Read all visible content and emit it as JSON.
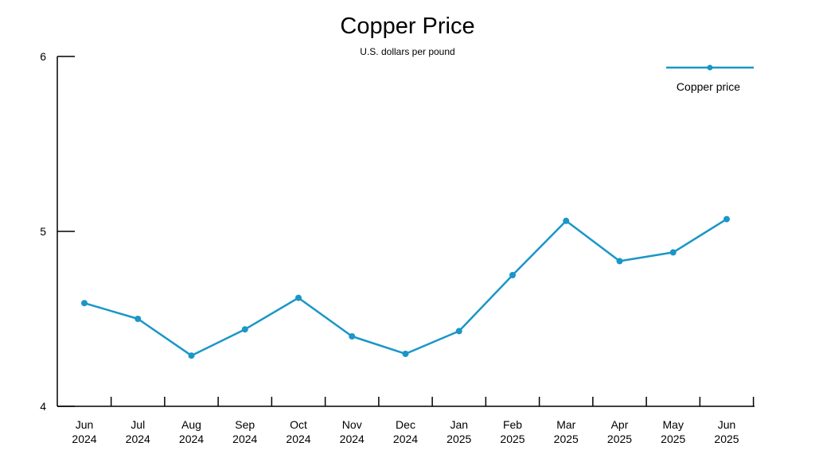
{
  "chart_data": {
    "type": "line",
    "title": "Copper Price",
    "subtitle": "U.S. dollars per pound",
    "xlabel": "",
    "ylabel": "",
    "ylim": [
      4,
      6
    ],
    "y_ticks": [
      "4",
      "5",
      "6"
    ],
    "x_tick_labels": [
      {
        "month": "Jun",
        "year": "2024"
      },
      {
        "month": "Jul",
        "year": "2024"
      },
      {
        "month": "Aug",
        "year": "2024"
      },
      {
        "month": "Sep",
        "year": "2024"
      },
      {
        "month": "Oct",
        "year": "2024"
      },
      {
        "month": "Nov",
        "year": "2024"
      },
      {
        "month": "Dec",
        "year": "2024"
      },
      {
        "month": "Jan",
        "year": "2025"
      },
      {
        "month": "Feb",
        "year": "2025"
      },
      {
        "month": "Mar",
        "year": "2025"
      },
      {
        "month": "Apr",
        "year": "2025"
      },
      {
        "month": "May",
        "year": "2025"
      },
      {
        "month": "Jun",
        "year": "2025"
      }
    ],
    "categories": [
      "2024-06",
      "2024-07",
      "2024-08",
      "2024-09",
      "2024-10",
      "2024-11",
      "2024-12",
      "2025-01",
      "2025-02",
      "2025-03",
      "2025-04",
      "2025-05",
      "2025-06"
    ],
    "series": [
      {
        "name": "Copper price",
        "color": "#1a96c8",
        "values": [
          4.59,
          4.5,
          4.29,
          4.44,
          4.62,
          4.4,
          4.3,
          4.43,
          4.75,
          5.06,
          4.83,
          4.88,
          5.07
        ]
      }
    ],
    "grid": false,
    "legend": "top-right"
  }
}
